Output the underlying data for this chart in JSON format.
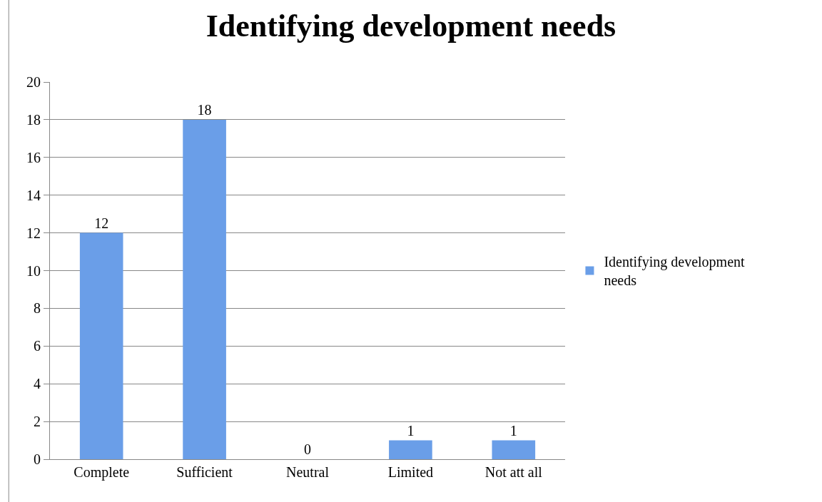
{
  "chart_data": {
    "type": "bar",
    "title": "Identifying development needs",
    "categories": [
      "Complete",
      "Sufficient",
      "Neutral",
      "Limited",
      "Not att all"
    ],
    "series": [
      {
        "name": "Identifying development needs",
        "color": "#6a9ee8",
        "values": [
          12,
          18,
          0,
          1,
          1
        ]
      }
    ],
    "ylim": [
      0,
      20
    ],
    "yticks": [
      0,
      2,
      4,
      6,
      8,
      10,
      12,
      14,
      16,
      18,
      20
    ],
    "grid": "y",
    "legend": "right",
    "data_labels": true
  }
}
